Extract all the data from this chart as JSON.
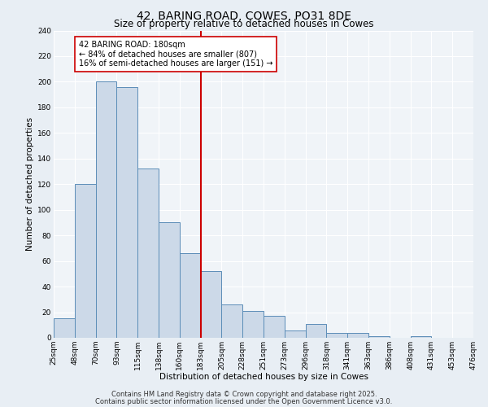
{
  "title": "42, BARING ROAD, COWES, PO31 8DE",
  "subtitle": "Size of property relative to detached houses in Cowes",
  "xlabel": "Distribution of detached houses by size in Cowes",
  "ylabel": "Number of detached properties",
  "bar_values": [
    15,
    120,
    200,
    196,
    132,
    90,
    66,
    52,
    26,
    21,
    17,
    6,
    11,
    4,
    4,
    1,
    0,
    1,
    0,
    0
  ],
  "bin_labels": [
    "25sqm",
    "48sqm",
    "70sqm",
    "93sqm",
    "115sqm",
    "138sqm",
    "160sqm",
    "183sqm",
    "205sqm",
    "228sqm",
    "251sqm",
    "273sqm",
    "296sqm",
    "318sqm",
    "341sqm",
    "363sqm",
    "386sqm",
    "408sqm",
    "431sqm",
    "453sqm",
    "476sqm"
  ],
  "bar_color": "#ccd9e8",
  "bar_edge_color": "#5b8db8",
  "ylim": [
    0,
    240
  ],
  "yticks": [
    0,
    20,
    40,
    60,
    80,
    100,
    120,
    140,
    160,
    180,
    200,
    220,
    240
  ],
  "vline_x": 7,
  "vline_color": "#cc0000",
  "annotation_text": "42 BARING ROAD: 180sqm\n← 84% of detached houses are smaller (807)\n16% of semi-detached houses are larger (151) →",
  "annotation_box_color": "#ffffff",
  "annotation_box_edge_color": "#cc0000",
  "footnote1": "Contains HM Land Registry data © Crown copyright and database right 2025.",
  "footnote2": "Contains public sector information licensed under the Open Government Licence v3.0.",
  "background_color": "#e8eef4",
  "plot_bg_color": "#f0f4f8",
  "grid_color": "#ffffff",
  "title_fontsize": 10,
  "subtitle_fontsize": 8.5,
  "axis_label_fontsize": 7.5,
  "tick_fontsize": 6.5,
  "annotation_fontsize": 7,
  "footnote_fontsize": 6
}
